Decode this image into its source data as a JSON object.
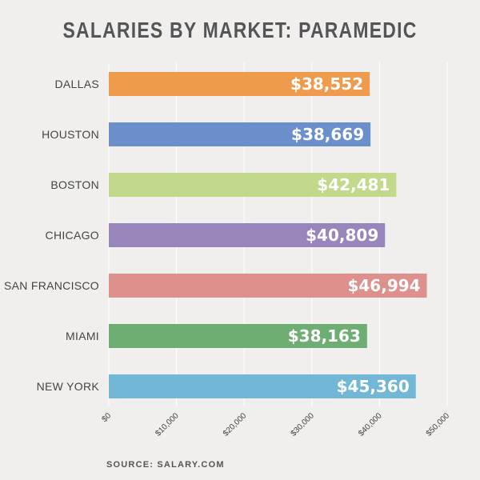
{
  "chart_data": {
    "type": "bar",
    "orientation": "horizontal",
    "title": "SALARIES BY MARKET: PARAMEDIC",
    "categories": [
      "DALLAS",
      "HOUSTON",
      "BOSTON",
      "CHICAGO",
      "SAN FRANCISCO",
      "MIAMI",
      "NEW YORK"
    ],
    "values": [
      38552,
      38669,
      42481,
      40809,
      46994,
      38163,
      45360
    ],
    "value_labels": [
      "$38,552",
      "$38,669",
      "$42,481",
      "$40,809",
      "$46,994",
      "$38,163",
      "$45,360"
    ],
    "colors": [
      "#ee9b4e",
      "#6b8fcb",
      "#c2d88a",
      "#9785bc",
      "#de908c",
      "#6fae72",
      "#72b7d6"
    ],
    "xlim": [
      0,
      50000
    ],
    "x_ticks": [
      0,
      10000,
      20000,
      30000,
      40000,
      50000
    ],
    "x_tick_labels": [
      "$0",
      "$10,000",
      "$20,000",
      "$30,000",
      "$40,000",
      "$50,000"
    ],
    "grid": true,
    "source": "SOURCE: SALARY.COM"
  }
}
